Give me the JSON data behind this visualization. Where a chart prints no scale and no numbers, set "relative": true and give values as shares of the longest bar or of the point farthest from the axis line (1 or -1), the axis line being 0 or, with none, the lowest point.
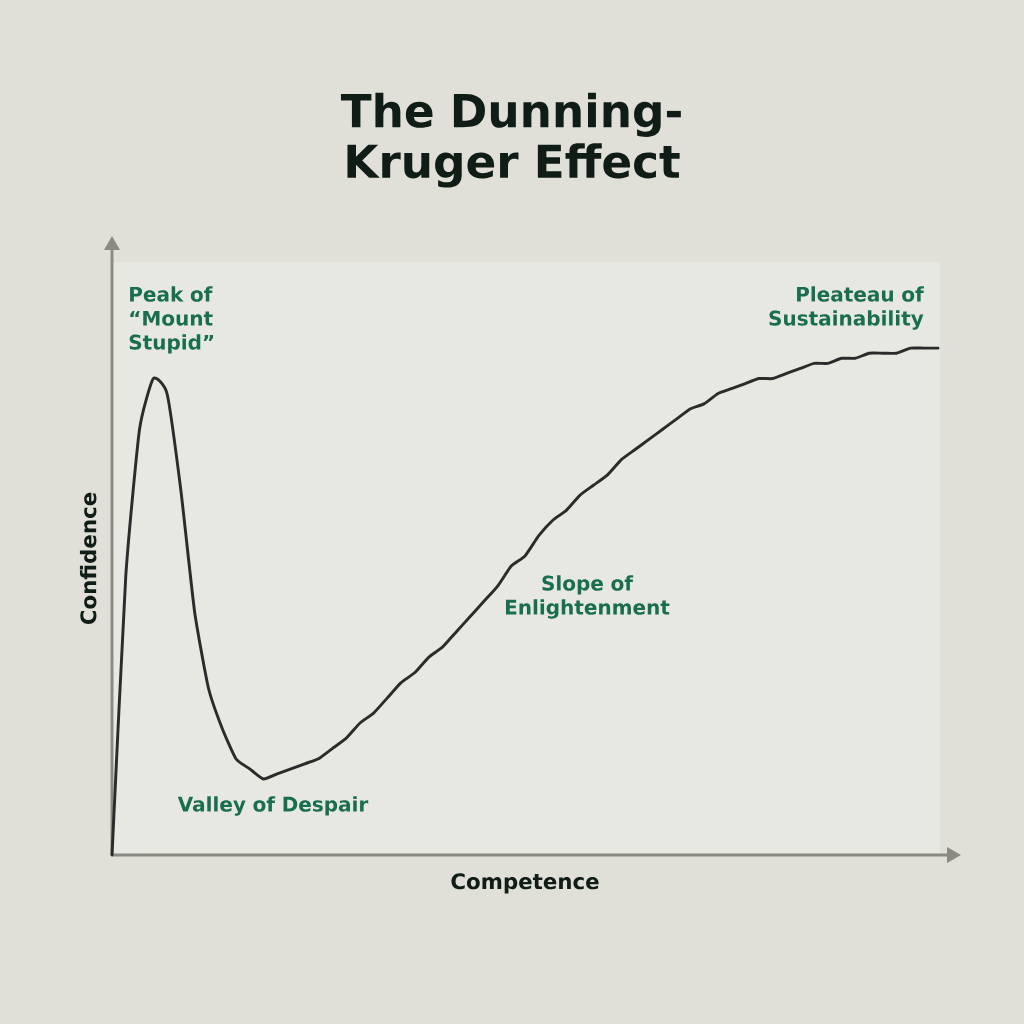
{
  "chart_data": {
    "type": "line",
    "title": "The Dunning-Kruger Effect",
    "xlabel": "Competence",
    "ylabel": "Confidence",
    "relative": true,
    "categories": [
      null,
      null,
      null,
      null,
      null,
      null,
      null,
      null,
      null,
      null,
      null,
      null,
      null,
      null,
      null,
      null,
      null,
      null,
      null,
      null,
      null,
      null,
      null,
      null,
      null,
      null,
      null,
      null,
      null,
      null,
      null,
      null,
      null,
      null,
      null,
      null,
      null,
      null,
      null,
      null,
      null,
      null,
      null,
      null,
      null,
      null,
      null,
      null,
      null,
      null,
      null,
      null,
      null,
      null,
      null,
      null,
      null,
      null,
      null,
      null,
      null
    ],
    "series": [
      {
        "color": "#2b2b2b",
        "values": [
          0.0,
          0.55,
          0.84,
          0.94,
          0.91,
          0.72,
          0.48,
          0.33,
          0.25,
          0.19,
          0.17,
          0.15,
          0.16,
          0.17,
          0.18,
          0.19,
          0.21,
          0.23,
          0.26,
          0.28,
          0.31,
          0.34,
          0.36,
          0.39,
          0.41,
          0.44,
          0.47,
          0.5,
          0.53,
          0.57,
          0.59,
          0.63,
          0.66,
          0.68,
          0.71,
          0.73,
          0.75,
          0.78,
          0.8,
          0.82,
          0.84,
          0.86,
          0.88,
          0.89,
          0.91,
          0.92,
          0.93,
          0.94,
          0.94,
          0.95,
          0.96,
          0.97,
          0.97,
          0.98,
          0.98,
          0.99,
          0.99,
          0.99,
          1.0,
          1.0,
          1.0
        ]
      }
    ],
    "annotations": [
      "Peak of “Mount Stupid”",
      "Valley of Despair",
      "Slope of Enlightenment",
      "Pleateau of Sustainability"
    ],
    "marker": "none",
    "line_style": "solid"
  }
}
